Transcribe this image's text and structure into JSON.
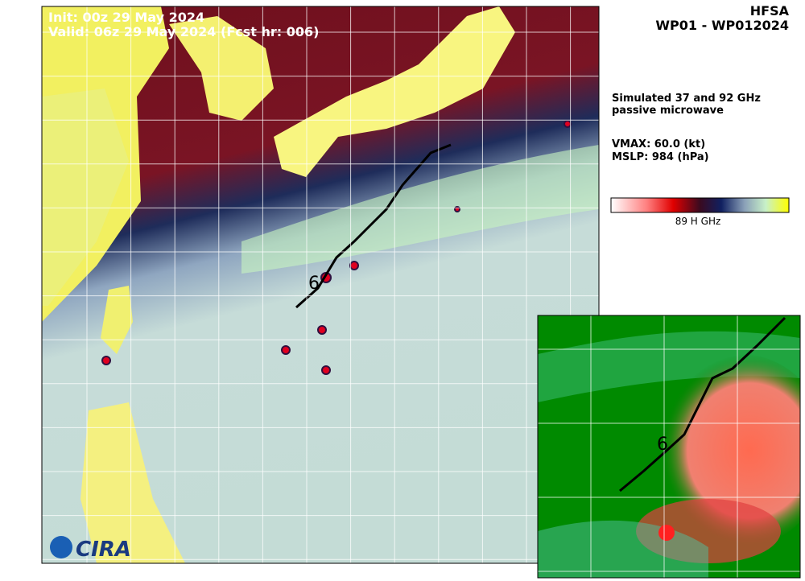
{
  "header": {
    "model": "HFSA",
    "storm": "WP01 - WP012024"
  },
  "overlay": {
    "init": "Init:   00z 29 May 2024",
    "valid": "Valid: 06z 29 May 2024 (Fcst hr: 006)"
  },
  "info": {
    "description": [
      "Simulated 37 and 92 GHz",
      "passive microwave"
    ],
    "vmax": "VMAX:  60.0 (kt)",
    "mslp": "MSLP:  984 (hPa)"
  },
  "colorbar": {
    "label": "89 H GHz"
  },
  "map": {
    "marker": "6",
    "logo": "CIRA"
  },
  "inset": {
    "marker": "6"
  }
}
